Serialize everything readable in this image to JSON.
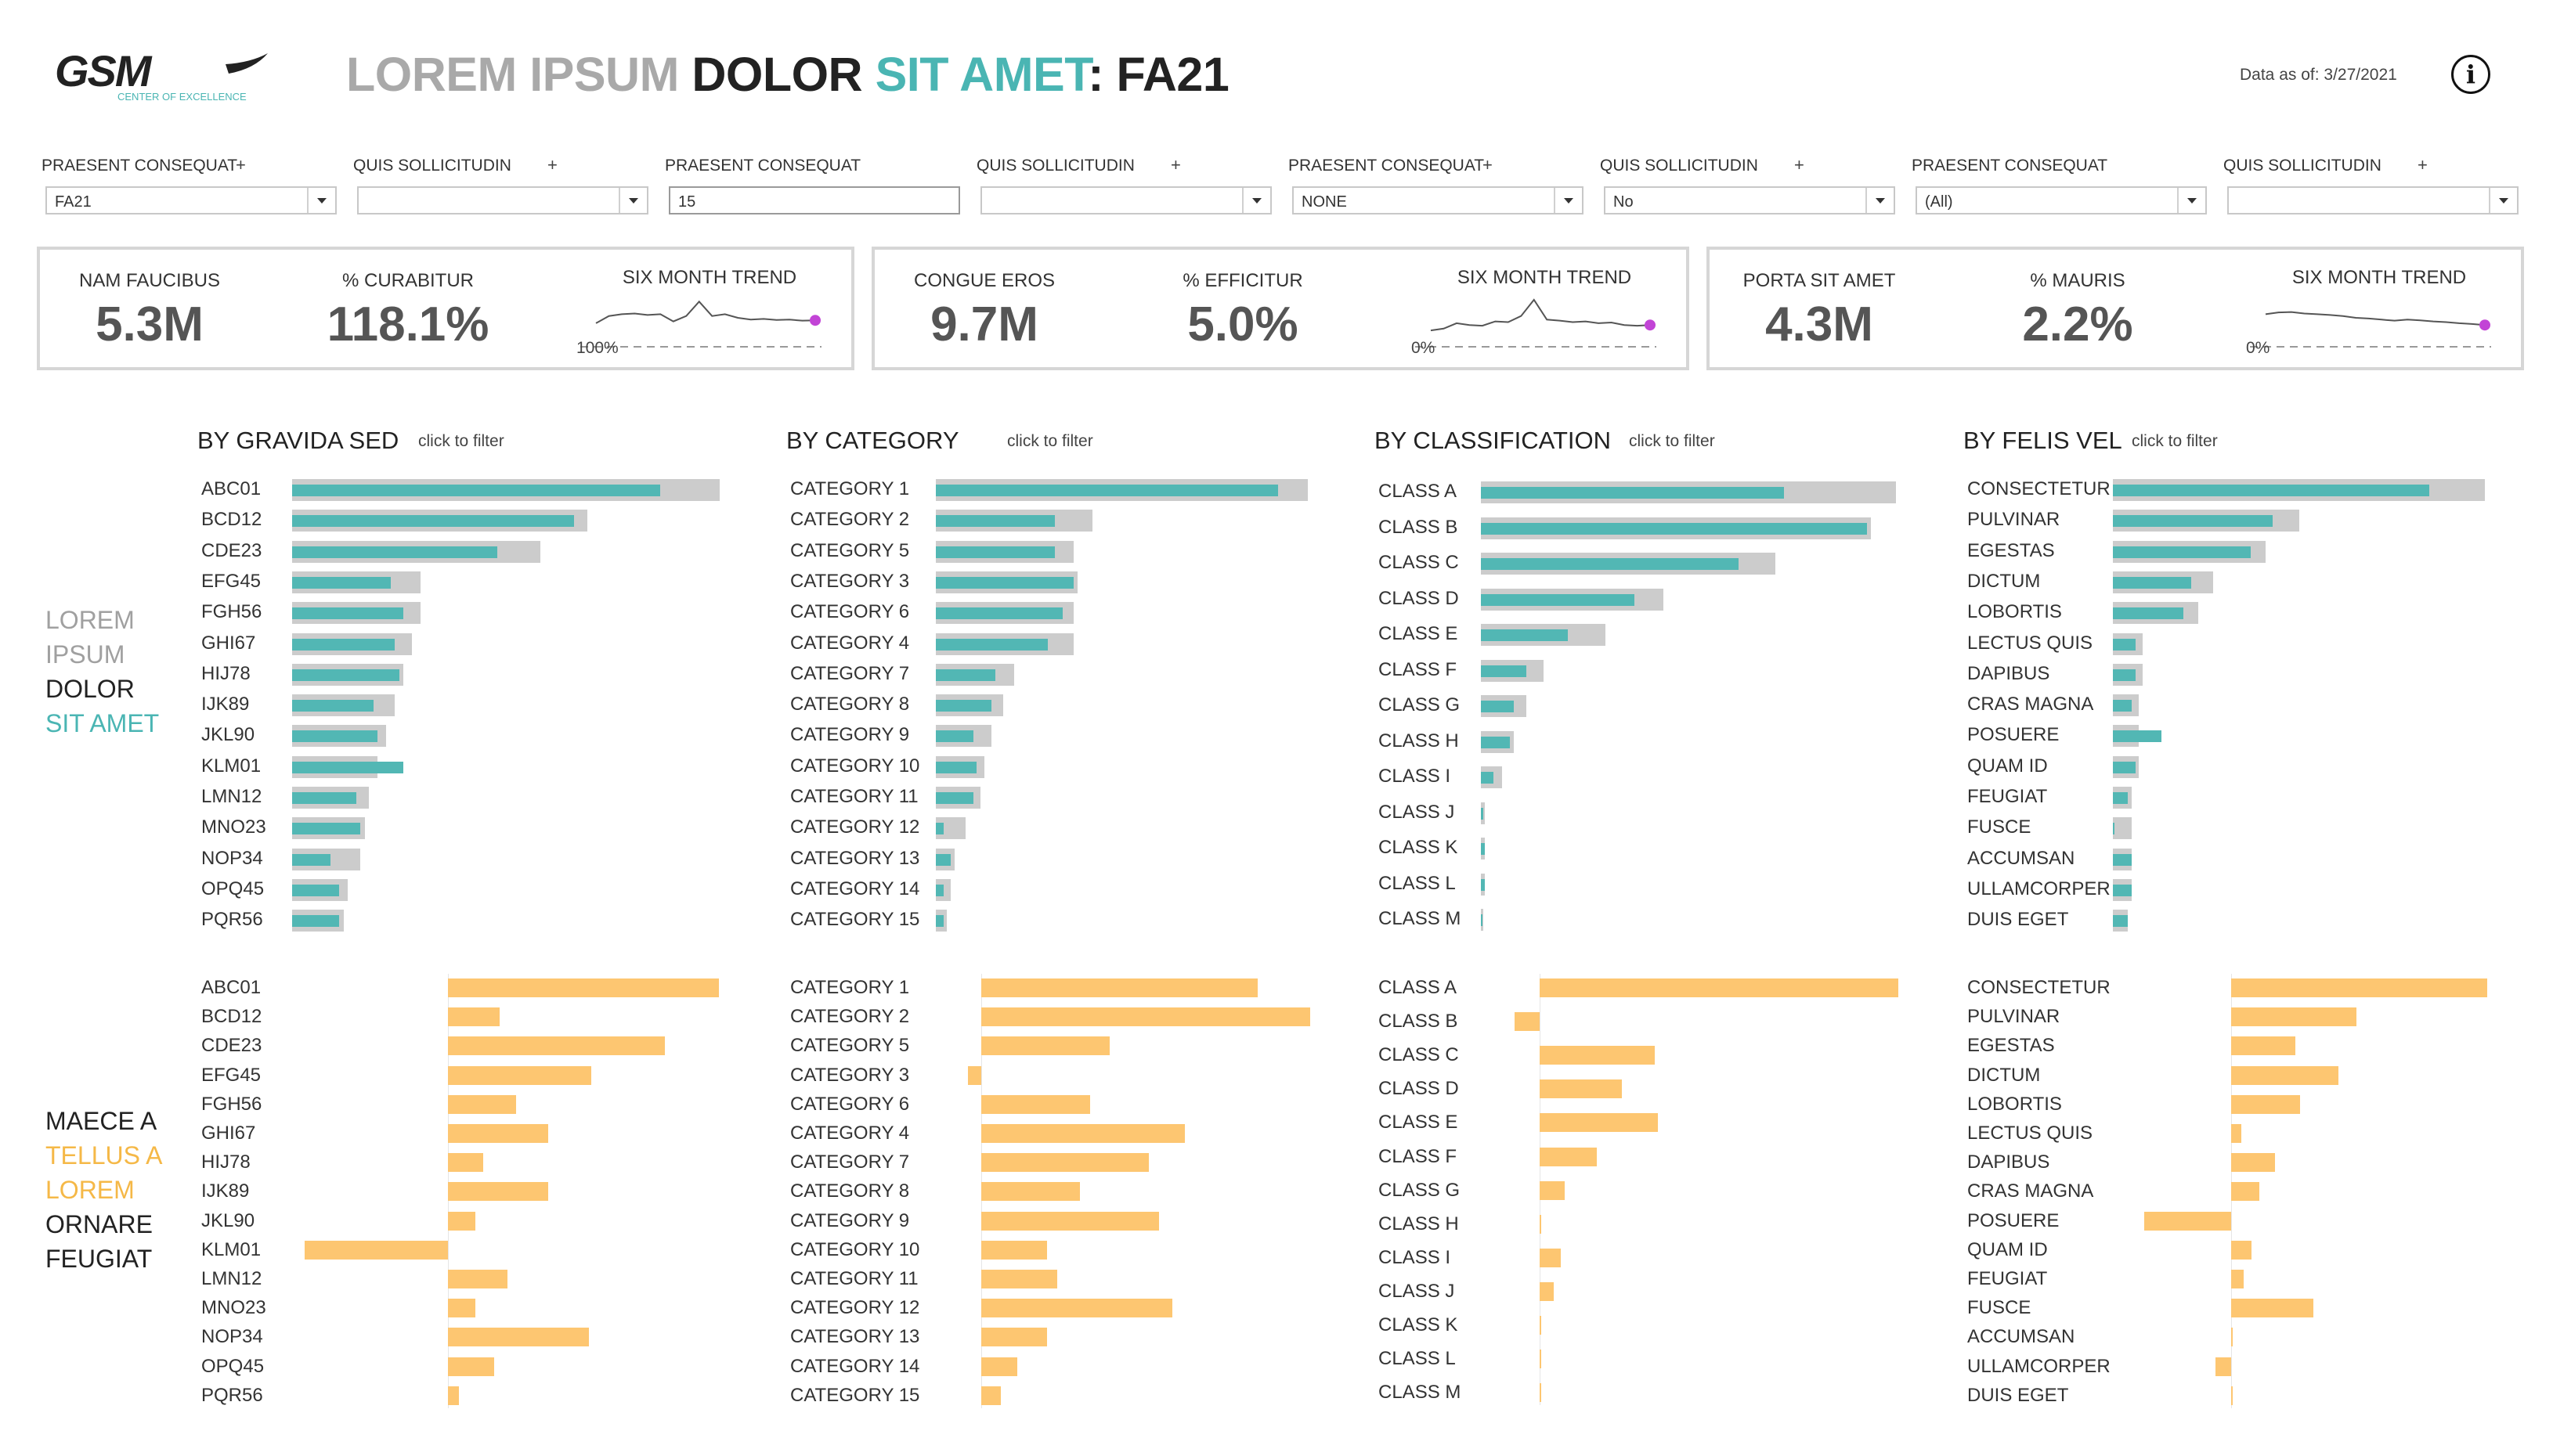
{
  "header": {
    "logo_text": "GSM",
    "logo_subtitle": "CENTER OF EXCELLENCE",
    "title_part1": "LOREM IPSUM ",
    "title_part2": "DOLOR ",
    "title_part3": "SIT AMET",
    "title_part4": ": FA21",
    "data_as_of": "Data as of: 3/27/2021",
    "info_icon": "i"
  },
  "filters": [
    {
      "label": "PRAESENT CONSEQUAT",
      "plus": "+",
      "value": "FA21",
      "type": "dropdown"
    },
    {
      "label": "QUIS SOLLICITUDIN",
      "plus": "+",
      "value": "",
      "type": "dropdown"
    },
    {
      "label": "PRAESENT CONSEQUAT",
      "plus": "",
      "value": "15",
      "type": "text"
    },
    {
      "label": "QUIS SOLLICITUDIN",
      "plus": "+",
      "value": "",
      "type": "dropdown"
    },
    {
      "label": "PRAESENT CONSEQUAT",
      "plus": "+",
      "value": "NONE",
      "type": "dropdown"
    },
    {
      "label": "QUIS SOLLICITUDIN",
      "plus": "+",
      "value": "No",
      "type": "dropdown"
    },
    {
      "label": "PRAESENT CONSEQUAT",
      "plus": "",
      "value": "(All)",
      "type": "dropdown"
    },
    {
      "label": "QUIS SOLLICITUDIN",
      "plus": "+",
      "value": "",
      "type": "dropdown"
    }
  ],
  "kpis": [
    {
      "label1": "NAM FAUCIBUS",
      "value1": "5.3M",
      "label2": "% CURABITUR",
      "value2": "118.1%",
      "trend_label": "SIX MONTH TREND",
      "ref_label": "100%",
      "trend": [
        0.35,
        0.55,
        0.6,
        0.62,
        0.58,
        0.6,
        0.4,
        0.55,
        0.95,
        0.55,
        0.6,
        0.5,
        0.45,
        0.47,
        0.44,
        0.45,
        0.42,
        0.43
      ]
    },
    {
      "label1": "CONGUE EROS",
      "value1": "9.7M",
      "label2": "% EFFICITUR",
      "value2": "5.0%",
      "trend_label": "SIX MONTH TREND",
      "ref_label": "0%",
      "trend": [
        0.15,
        0.2,
        0.35,
        0.3,
        0.28,
        0.4,
        0.38,
        0.55,
        1.0,
        0.45,
        0.42,
        0.38,
        0.4,
        0.35,
        0.37,
        0.3,
        0.28,
        0.3
      ]
    },
    {
      "label1": "PORTA SIT AMET",
      "value1": "4.3M",
      "label2": "% MAURIS",
      "value2": "2.2%",
      "trend_label": "SIX MONTH TREND",
      "ref_label": "0%",
      "trend": [
        0.6,
        0.65,
        0.66,
        0.62,
        0.6,
        0.58,
        0.55,
        0.5,
        0.48,
        0.45,
        0.42,
        0.45,
        0.43,
        0.4,
        0.38,
        0.35,
        0.33,
        0.3
      ]
    }
  ],
  "side_labels": {
    "top": [
      {
        "text": "LOREM",
        "color": "#a0a0a0"
      },
      {
        "text": "IPSUM",
        "color": "#a0a0a0"
      },
      {
        "text": "DOLOR",
        "color": "#222222"
      },
      {
        "text": "SIT AMET",
        "color": "#4ab5b3"
      }
    ],
    "bottom": [
      {
        "text": "MAECE A",
        "color": "#222222"
      },
      {
        "text": "TELLUS A",
        "color": "#f5b847"
      },
      {
        "text": "LOREM",
        "color": "#f5b847"
      },
      {
        "text": "ORNARE",
        "color": "#222222"
      },
      {
        "text": "FEUGIAT",
        "color": "#222222"
      }
    ]
  },
  "colors": {
    "teal": "#52b7b4",
    "gray_bar": "#cccccc",
    "orange": "#fdc671",
    "purple_dot": "#c244d6"
  },
  "click_hint": "click to filter",
  "chart_data": [
    {
      "type": "bar",
      "title": "BY GRAVIDA SED",
      "categories": [
        "ABC01",
        "BCD12",
        "CDE23",
        "EFG45",
        "FGH56",
        "GHI67",
        "HIJ78",
        "IJK89",
        "JKL90",
        "KLM01",
        "LMN12",
        "MNO23",
        "NOP34",
        "OPQ45",
        "PQR56"
      ],
      "series": [
        {
          "values": [
            100,
            69,
            58,
            30,
            30,
            28,
            26,
            24,
            22,
            20,
            18,
            17,
            16,
            13,
            12
          ]
        },
        {
          "values": [
            86,
            66,
            48,
            23,
            26,
            24,
            25,
            19,
            20,
            26,
            15,
            16,
            9,
            11,
            11
          ]
        }
      ]
    },
    {
      "type": "bar",
      "title": "BY CATEGORY",
      "categories": [
        "CATEGORY 1",
        "CATEGORY 2",
        "CATEGORY 5",
        "CATEGORY 3",
        "CATEGORY 6",
        "CATEGORY 4",
        "CATEGORY 7",
        "CATEGORY 8",
        "CATEGORY 9",
        "CATEGORY 10",
        "CATEGORY 11",
        "CATEGORY 12",
        "CATEGORY 13",
        "CATEGORY 14",
        "CATEGORY 15"
      ],
      "series": [
        {
          "values": [
            100,
            42,
            37,
            38,
            37,
            37,
            21,
            18,
            15,
            13,
            12,
            8,
            5,
            4,
            3
          ]
        },
        {
          "values": [
            92,
            32,
            32,
            37,
            34,
            30,
            16,
            15,
            10,
            11,
            10,
            2,
            4,
            2,
            2
          ]
        }
      ]
    },
    {
      "type": "bar",
      "title": "BY CLASSIFICATION",
      "categories": [
        "CLASS A",
        "CLASS B",
        "CLASS C",
        "CLASS D",
        "CLASS E",
        "CLASS F",
        "CLASS G",
        "CLASS H",
        "CLASS I",
        "CLASS J",
        "CLASS K",
        "CLASS L",
        "CLASS M"
      ],
      "series": [
        {
          "values": [
            100,
            94,
            71,
            44,
            30,
            15,
            11,
            8,
            5,
            1,
            1,
            1,
            0.5
          ]
        },
        {
          "values": [
            73,
            93,
            62,
            37,
            21,
            11,
            8,
            7,
            3,
            0.5,
            1,
            1,
            0.3
          ]
        }
      ]
    },
    {
      "type": "bar",
      "title": "BY FELIS VEL",
      "categories": [
        "CONSECTETUR",
        "PULVINAR",
        "EGESTAS",
        "DICTUM",
        "LOBORTIS",
        "LECTUS QUIS",
        "DAPIBUS",
        "CRAS MAGNA",
        "POSUERE",
        "QUAM ID",
        "FEUGIAT",
        "FUSCE",
        "ACCUMSAN",
        "ULLAMCORPER",
        "DUIS EGET"
      ],
      "series": [
        {
          "values": [
            100,
            50,
            41,
            27,
            23,
            8,
            8,
            7,
            7,
            7,
            5,
            5,
            5,
            5,
            4
          ]
        },
        {
          "values": [
            85,
            43,
            37,
            21,
            19,
            6,
            6,
            5,
            13,
            6,
            4,
            0,
            5,
            5,
            4
          ]
        }
      ]
    },
    {
      "type": "bar",
      "orientation": "diverging",
      "categories": [
        "ABC01",
        "BCD12",
        "CDE23",
        "EFG45",
        "FGH56",
        "GHI67",
        "HIJ78",
        "IJK89",
        "JKL90",
        "KLM01",
        "LMN12",
        "MNO23",
        "NOP34",
        "OPQ45",
        "PQR56"
      ],
      "values": [
        100,
        19,
        80,
        53,
        25,
        37,
        13,
        37,
        10,
        -53,
        22,
        10,
        52,
        17,
        4
      ],
      "ylim": [
        -70,
        100
      ]
    },
    {
      "type": "bar",
      "orientation": "diverging",
      "categories": [
        "CATEGORY 1",
        "CATEGORY 2",
        "CATEGORY 5",
        "CATEGORY 3",
        "CATEGORY 6",
        "CATEGORY 4",
        "CATEGORY 7",
        "CATEGORY 8",
        "CATEGORY 9",
        "CATEGORY 10",
        "CATEGORY 11",
        "CATEGORY 12",
        "CATEGORY 13",
        "CATEGORY 14",
        "CATEGORY 15"
      ],
      "values": [
        84,
        100,
        39,
        -4,
        33,
        62,
        51,
        30,
        54,
        20,
        23,
        58,
        20,
        11,
        6
      ],
      "ylim": [
        -10,
        100
      ]
    },
    {
      "type": "bar",
      "orientation": "diverging",
      "categories": [
        "CLASS A",
        "CLASS B",
        "CLASS C",
        "CLASS D",
        "CLASS E",
        "CLASS F",
        "CLASS G",
        "CLASS H",
        "CLASS I",
        "CLASS J",
        "CLASS K",
        "CLASS L",
        "CLASS M"
      ],
      "values": [
        100,
        -7,
        32,
        23,
        33,
        16,
        7,
        0.5,
        6,
        4,
        0.5,
        0.5,
        0.5
      ],
      "ylim": [
        -15,
        100
      ]
    },
    {
      "type": "bar",
      "orientation": "diverging",
      "categories": [
        "CONSECTETUR",
        "PULVINAR",
        "EGESTAS",
        "DICTUM",
        "LOBORTIS",
        "LECTUS QUIS",
        "DAPIBUS",
        "CRAS MAGNA",
        "POSUERE",
        "QUAM ID",
        "FEUGIAT",
        "FUSCE",
        "ACCUMSAN",
        "ULLAMCORPER",
        "DUIS EGET"
      ],
      "values": [
        100,
        49,
        25,
        42,
        27,
        4,
        17,
        11,
        -34,
        8,
        5,
        32,
        0.5,
        -6,
        0.5
      ],
      "ylim": [
        -40,
        100
      ]
    }
  ]
}
